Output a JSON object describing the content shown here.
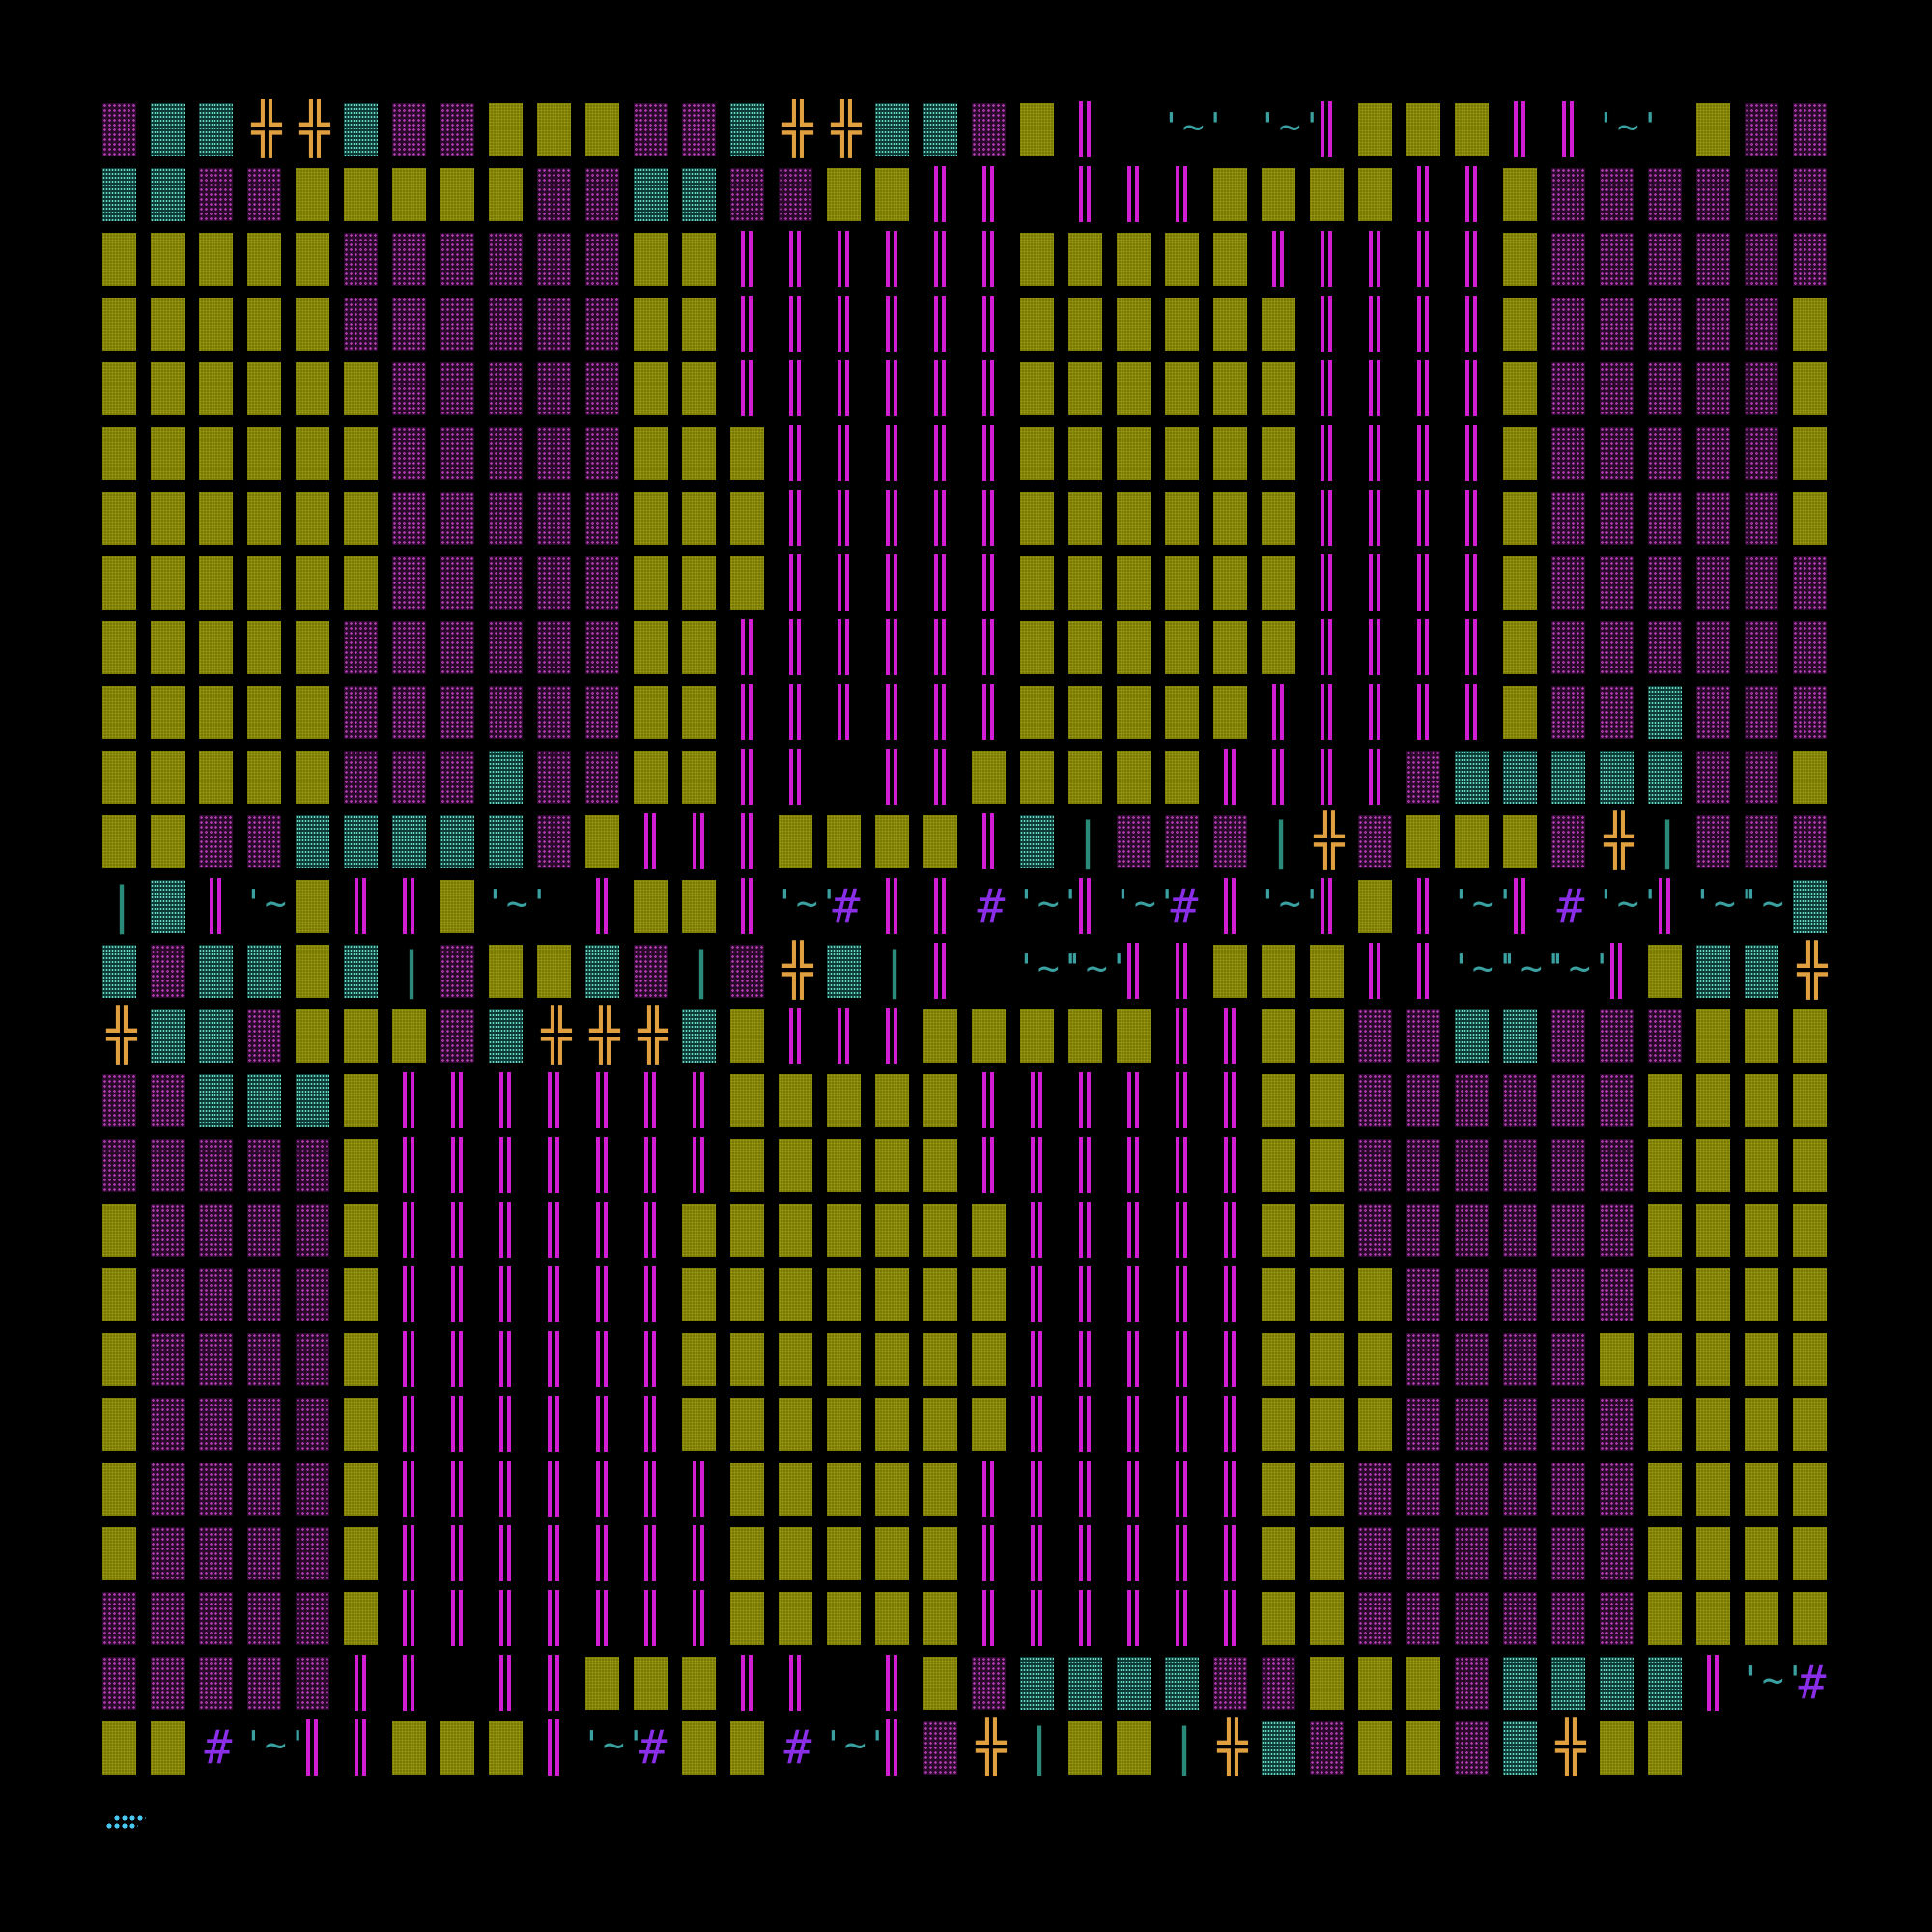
{
  "map": {
    "legend": {
      "W": "wall",
      "F": "floor",
      "A": "water",
      "P": "pillar",
      "D": "door",
      "T": "tilde",
      "H": "hash",
      "L": "post",
      "O": "dots",
      ".": "empty"
    },
    "glyphs": {
      "door": "╬",
      "tilde": "'~'",
      "hash": "#",
      "post": "|",
      "door_low": "╩"
    },
    "colors": {
      "background": "#000000",
      "wall": "#7a7a00",
      "floor_dot": "#b03cb0",
      "water_dot": "#6ad8c8",
      "pillar": "#d21ed2",
      "door": "#e0a040",
      "tilde": "#3aa0a0",
      "hash": "#8a2ee8",
      "dots": "#48c8f0"
    },
    "rows": [
      "FAADDAFFWWWFFADDAAFWP.T.TOOPWWWPPOT.",
      "WFFAAFFWWWWWFFAAFFWWPPO.PPPWWWWPPOOO",
      "WFFFFFFWWWWWFFFFFFWWPPPPPPWWWWWPPPPP",
      "WFFFFFFWWWWWFFFFFFWWPPPPPPWWWWWWPPPP",
      "WFFFFFWWWWWWWFFFFFWWPPPPPPWWWWWWPPPP",
      "WFFFFFWWWWWWWFFFFFWWWPPPPPWWWWWWPPPP",
      "WFFFFFWWWWWWWFFFFFWWWPPPPPWWWWWWPPPP",
      "WFFFFFWWWWWWWFFFFFWWWPPPPPWWWWWWPPPP",
      "WFFFFFFWWWWWFFFFFFWWPPPPPPWWWWWWPPPP",
      "WFFFFFFWWWWWFFFFFFWWPPPPPPWWWWWPPPPP",
      "WFFAFFFWWWWWFFFAFFWWPPO.PPWWWWWPPPOP",
      "FAAAAAFFWWWFFAAAAAFWPOOOOPPWWWWPOOOO",
      "ALFFFLDFWWWFDLFFFLAPTWPPWT.PWWPTHPPH",
      "TPTOHPTPWPTPHOTPTTAAFAAWALFWWAFLFDAL",
      "PO.TTOPPWWWPPOTTTOPWAADDAAFWWWFADDDA",
      "WPOOOOPPWWWWWPOOOOPWWFFAAFFFWWWFFAAA",
      "WPPPPPPPWWWWWPPPPPPWWFFFFFFWWWWFFFFF",
      "WPPPPPPPWWWWWPPPPPPWWFFFFFFWWWWWFFFF",
      "WPPPPPPWWWWWWWPPPPPWWFFFFFFWWWWWFFFF",
      "WPPPPPPWWWWWWWPPPPPWWWFFFFFWWWWWFFFF",
      "WPPPPPPWWWWWWWPPPPPWWWFFFFWWWWWWFFFF",
      "WPPPPPPWWWWWWWPPPPPWWWFFFFFWWWWWFFFF",
      "WPPPPPPPWWWWWPPPPPPWWFFFFFFWWWWWFFFF",
      "WPPPPPPPWWWWWPPPPPPWWFFFFFFWWWWFFFFF",
      "WPPPPPPPWWWWWPPPPPPWWFFFFFFWWWWFFFFF",
      "PPOOOO.PPWWWPPOOOO.PWFAAAAFFWWWFAAAA",
      "PTHWWHTPPWWWPTHWWHTPFDLWWLDAFWWFADWW"
    ]
  }
}
